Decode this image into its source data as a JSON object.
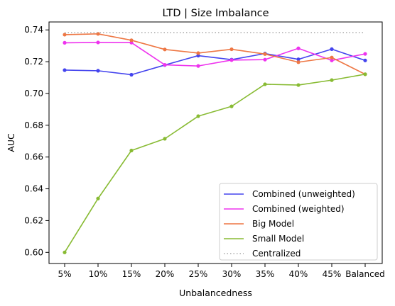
{
  "chart_data": {
    "type": "line",
    "title": "LTD | Size Imbalance",
    "xlabel": "Unbalancedness",
    "ylabel": "AUC",
    "categories": [
      "5%",
      "10%",
      "15%",
      "20%",
      "25%",
      "30%",
      "35%",
      "40%",
      "45%",
      "Balanced"
    ],
    "ylim": [
      0.593,
      0.745
    ],
    "yticks": [
      "0.60",
      "0.62",
      "0.64",
      "0.66",
      "0.68",
      "0.70",
      "0.72",
      "0.74"
    ],
    "grid": false,
    "legend_position": "lower-right",
    "series": [
      {
        "name": "Combined (unweighted)",
        "color": "#4444ee",
        "style": "solid",
        "markers": true,
        "values": [
          0.7147,
          0.7143,
          0.7118,
          0.7179,
          0.7238,
          0.7213,
          0.7251,
          0.7215,
          0.7279,
          0.7208
        ]
      },
      {
        "name": "Combined (weighted)",
        "color": "#ee33ee",
        "style": "solid",
        "markers": true,
        "values": [
          0.7319,
          0.7321,
          0.732,
          0.718,
          0.7173,
          0.721,
          0.7213,
          0.7284,
          0.7208,
          0.7249
        ]
      },
      {
        "name": "Big Model",
        "color": "#ee7744",
        "style": "solid",
        "markers": true,
        "values": [
          0.737,
          0.7375,
          0.7335,
          0.7277,
          0.7254,
          0.7278,
          0.7248,
          0.7197,
          0.7226,
          0.7121
        ]
      },
      {
        "name": "Small Model",
        "color": "#88bb33",
        "style": "solid",
        "markers": true,
        "values": [
          0.6,
          0.6339,
          0.6641,
          0.6715,
          0.6857,
          0.6919,
          0.7058,
          0.7053,
          0.7084,
          0.7121
        ]
      },
      {
        "name": "Centralized",
        "color": "#aaaaaa",
        "style": "dotted",
        "markers": false,
        "values": [
          0.7383,
          0.7383,
          0.7383,
          0.7383,
          0.7383,
          0.7383,
          0.7383,
          0.7383,
          0.7383,
          0.7383
        ]
      }
    ]
  }
}
